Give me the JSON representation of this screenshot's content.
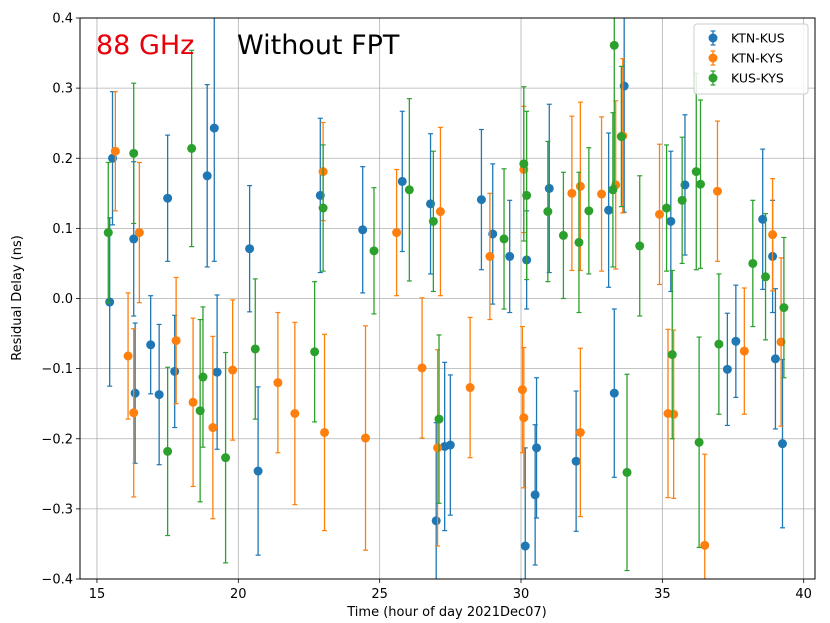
{
  "chart_data": {
    "type": "scatter",
    "annotations": {
      "frequency": "88 GHz",
      "frequency_color": "#e8000b",
      "condition": "Without FPT"
    },
    "xlabel": "Time (hour of day 2021Dec07)",
    "ylabel": "Residual Delay (ns)",
    "xlim": [
      14.4,
      40.4
    ],
    "ylim": [
      -0.4,
      0.4
    ],
    "xticks": [
      15,
      20,
      25,
      30,
      35,
      40
    ],
    "yticks": [
      -0.4,
      -0.3,
      -0.2,
      -0.1,
      0.0,
      0.1,
      0.2,
      0.3,
      0.4
    ],
    "xtick_labels": [
      "15",
      "20",
      "25",
      "30",
      "35",
      "40"
    ],
    "ytick_labels": [
      "−0.4",
      "−0.3",
      "−0.2",
      "−0.1",
      "0.0",
      "0.1",
      "0.2",
      "0.3",
      "0.4"
    ],
    "grid": true,
    "legend_position": "top-right",
    "series": [
      {
        "name": "KTN-KUS",
        "color": "#1f77b4",
        "x": [
          15.45,
          15.55,
          16.3,
          16.35,
          17.2,
          17.5,
          17.75,
          18.9,
          19.15,
          19.25,
          20.7,
          25.8,
          27.0,
          27.3,
          27.5,
          28.6,
          29.6,
          30.15,
          30.2,
          30.5,
          30.55,
          31.0,
          31.95,
          33.3,
          33.65,
          35.3,
          37.3,
          38.55,
          38.9,
          39.25,
          16.9,
          20.4,
          22.9,
          24.4,
          26.8,
          29.0,
          33.1,
          35.8,
          37.6,
          39.0
        ],
        "y": [
          -0.005,
          0.2,
          0.085,
          -0.135,
          -0.137,
          0.143,
          -0.104,
          0.175,
          0.243,
          -0.105,
          -0.246,
          0.167,
          -0.317,
          -0.211,
          -0.209,
          0.141,
          0.06,
          -0.353,
          0.055,
          -0.28,
          -0.213,
          0.157,
          -0.232,
          -0.135,
          0.303,
          0.11,
          -0.101,
          0.113,
          0.06,
          -0.207,
          -0.066,
          0.071,
          0.147,
          0.098,
          0.135,
          0.092,
          0.126,
          0.162,
          -0.061,
          -0.086
        ],
        "yerr": [
          0.12,
          0.095,
          0.11,
          0.1,
          0.1,
          0.09,
          0.08,
          0.13,
          0.19,
          0.11,
          0.12,
          0.1,
          0.14,
          0.12,
          0.1,
          0.1,
          0.08,
          0.14,
          0.07,
          0.1,
          0.1,
          0.12,
          0.1,
          0.12,
          0.18,
          0.1,
          0.08,
          0.1,
          0.08,
          0.12,
          0.07,
          0.09,
          0.11,
          0.09,
          0.1,
          0.1,
          0.11,
          0.1,
          0.08,
          0.1
        ]
      },
      {
        "name": "KTN-KYS",
        "color": "#ff7f0e",
        "x": [
          15.65,
          16.3,
          16.5,
          17.8,
          18.4,
          19.1,
          22.0,
          23.0,
          23.05,
          24.5,
          25.6,
          27.05,
          27.15,
          28.9,
          30.1,
          30.1,
          30.05,
          31.8,
          32.1,
          32.1,
          32.85,
          33.35,
          33.6,
          35.2,
          35.4,
          36.5,
          36.95,
          38.9,
          39.2,
          16.1,
          21.4,
          26.5,
          28.2,
          34.9,
          37.9,
          19.8
        ],
        "y": [
          0.21,
          -0.163,
          0.094,
          -0.06,
          -0.148,
          -0.184,
          -0.164,
          0.181,
          -0.191,
          -0.199,
          0.094,
          -0.213,
          0.124,
          0.06,
          0.184,
          -0.17,
          -0.13,
          0.15,
          0.16,
          -0.191,
          0.149,
          0.162,
          0.232,
          -0.164,
          -0.165,
          -0.352,
          0.153,
          0.091,
          -0.062,
          -0.082,
          -0.12,
          -0.099,
          -0.127,
          0.12,
          -0.075,
          -0.102
        ],
        "yerr": [
          0.085,
          0.12,
          0.1,
          0.09,
          0.12,
          0.13,
          0.13,
          0.07,
          0.14,
          0.16,
          0.09,
          0.14,
          0.12,
          0.09,
          0.09,
          0.1,
          0.09,
          0.11,
          0.12,
          0.12,
          0.11,
          0.12,
          0.11,
          0.12,
          0.12,
          0.13,
          0.1,
          0.08,
          0.12,
          0.09,
          0.1,
          0.1,
          0.1,
          0.1,
          0.09,
          0.1
        ]
      },
      {
        "name": "KUS-KYS",
        "color": "#2ca02c",
        "x": [
          15.4,
          16.3,
          17.5,
          18.35,
          18.65,
          18.75,
          19.55,
          23.0,
          26.05,
          27.1,
          30.1,
          30.2,
          30.95,
          32.05,
          32.4,
          33.25,
          33.3,
          33.55,
          33.75,
          35.15,
          35.35,
          35.7,
          36.2,
          36.3,
          36.35,
          38.65,
          39.3,
          20.6,
          22.7,
          24.8,
          26.9,
          29.4,
          31.5,
          34.2,
          37.0,
          38.2
        ],
        "y": [
          0.094,
          0.207,
          -0.218,
          0.214,
          -0.16,
          -0.112,
          -0.227,
          0.129,
          0.155,
          -0.172,
          0.192,
          0.147,
          0.124,
          0.08,
          0.125,
          0.155,
          0.361,
          0.231,
          -0.248,
          0.129,
          -0.08,
          0.14,
          0.181,
          -0.205,
          0.163,
          0.031,
          -0.013,
          -0.072,
          -0.076,
          0.068,
          0.11,
          0.085,
          0.09,
          0.075,
          -0.065,
          0.05
        ],
        "yerr": [
          0.1,
          0.1,
          0.12,
          0.14,
          0.13,
          0.1,
          0.15,
          0.09,
          0.13,
          0.12,
          0.11,
          0.12,
          0.1,
          0.1,
          0.09,
          0.11,
          0.2,
          0.1,
          0.14,
          0.09,
          0.12,
          0.09,
          0.14,
          0.15,
          0.12,
          0.09,
          0.1,
          0.1,
          0.1,
          0.09,
          0.1,
          0.1,
          0.09,
          0.1,
          0.1,
          0.09
        ]
      }
    ]
  }
}
